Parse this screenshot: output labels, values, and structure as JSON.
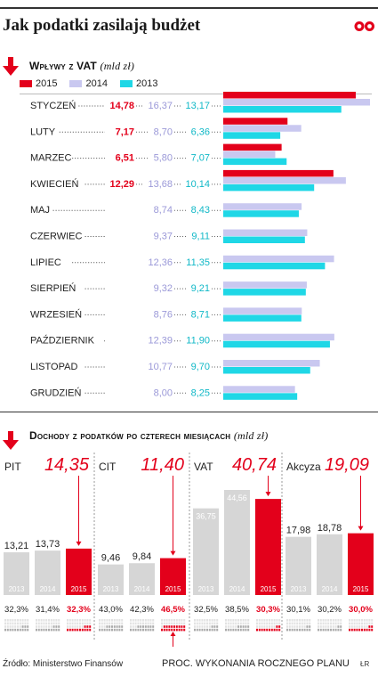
{
  "title": "Jak podatki zasilają budżet",
  "brand": "ćp",
  "colors": {
    "y2015": "#e3001b",
    "y2014": "#c9c8f0",
    "y2013": "#1fd7e6",
    "grey": "#d6d6d6",
    "plan_label_2015": "#e3001b",
    "label_2014": "#9b99d8",
    "label_2013": "#10b8c7"
  },
  "vat_section": {
    "title": "Wpływy z VAT",
    "unit": "(mld zł)",
    "legend": [
      "2015",
      "2014",
      "2013"
    ]
  },
  "chart_data": [
    {
      "type": "bar",
      "orientation": "horizontal",
      "title": "Wpływy z VAT",
      "unit": "mld zł",
      "categories": [
        "STYCZEŃ",
        "LUTY",
        "MARZEC",
        "KWIECIEŃ",
        "MAJ",
        "CZERWIEC",
        "LIPIEC",
        "SIERPIEŃ",
        "WRZESIEŃ",
        "PAŹDZIERNIK",
        "LISTOPAD",
        "GRUDZIEŃ"
      ],
      "series": [
        {
          "name": "2015",
          "values": [
            14.78,
            7.17,
            6.51,
            12.29,
            null,
            null,
            null,
            null,
            null,
            null,
            null,
            null
          ],
          "labels": [
            "14,78",
            "7,17",
            "6,51",
            "12,29",
            "",
            "",
            "",
            "",
            "",
            "",
            "",
            ""
          ]
        },
        {
          "name": "2014",
          "values": [
            16.37,
            8.7,
            5.8,
            13.68,
            8.74,
            9.37,
            12.36,
            9.32,
            8.76,
            12.39,
            10.77,
            8.0
          ],
          "labels": [
            "16,37",
            "8,70",
            "5,80",
            "13,68",
            "8,74",
            "9,37",
            "12,36",
            "9,32",
            "8,76",
            "12,39",
            "10,77",
            "8,00"
          ]
        },
        {
          "name": "2013",
          "values": [
            13.17,
            6.36,
            7.07,
            10.14,
            8.43,
            9.11,
            11.35,
            9.21,
            8.71,
            11.9,
            9.7,
            8.25
          ],
          "labels": [
            "13,17",
            "6,36",
            "7,07",
            "10,14",
            "8,43",
            "9,11",
            "11,35",
            "9,21",
            "8,71",
            "11,90",
            "9,70",
            "8,25"
          ]
        }
      ],
      "legend": "top-left",
      "grid": false
    },
    {
      "type": "bar",
      "title": "Dochody z podatków po czterech miesiącach",
      "unit": "mld zł",
      "groups": [
        {
          "name": "PIT",
          "annual_plan": 14.35,
          "annual_plan_label": "14,35",
          "bars": [
            {
              "year": "2013",
              "value": 13.21,
              "label": "13,21"
            },
            {
              "year": "2014",
              "value": 13.73,
              "label": "13,73"
            },
            {
              "year": "2015",
              "value": 14.35,
              "label": ""
            }
          ],
          "plan_execution": [
            {
              "year": "2013",
              "pct": 32.3,
              "label": "32,3%"
            },
            {
              "year": "2014",
              "pct": 31.4,
              "label": "31,4%"
            },
            {
              "year": "2015",
              "pct": 32.3,
              "label": "32,3%"
            }
          ]
        },
        {
          "name": "CIT",
          "annual_plan": 11.4,
          "annual_plan_label": "11,40",
          "bars": [
            {
              "year": "2013",
              "value": 9.46,
              "label": "9,46"
            },
            {
              "year": "2014",
              "value": 9.84,
              "label": "9,84"
            },
            {
              "year": "2015",
              "value": 11.4,
              "label": ""
            }
          ],
          "plan_execution": [
            {
              "year": "2013",
              "pct": 43.0,
              "label": "43,0%"
            },
            {
              "year": "2014",
              "pct": 42.3,
              "label": "42,3%"
            },
            {
              "year": "2015",
              "pct": 46.5,
              "label": "46,5%"
            }
          ]
        },
        {
          "name": "VAT",
          "annual_plan": 40.74,
          "annual_plan_label": "40,74",
          "bars": [
            {
              "year": "2013",
              "value": 36.75,
              "label": "36,75"
            },
            {
              "year": "2014",
              "value": 44.56,
              "label": "44,56"
            },
            {
              "year": "2015",
              "value": 40.74,
              "label": ""
            }
          ],
          "plan_execution": [
            {
              "year": "2013",
              "pct": 32.5,
              "label": "32,5%"
            },
            {
              "year": "2014",
              "pct": 38.5,
              "label": "38,5%"
            },
            {
              "year": "2015",
              "pct": 30.3,
              "label": "30,3%"
            }
          ]
        },
        {
          "name": "Akcyza",
          "annual_plan": 19.09,
          "annual_plan_label": "19,09",
          "bars": [
            {
              "year": "2013",
              "value": 17.98,
              "label": "17,98"
            },
            {
              "year": "2014",
              "value": 18.78,
              "label": "18,78"
            },
            {
              "year": "2015",
              "value": 19.09,
              "label": ""
            }
          ],
          "plan_execution": [
            {
              "year": "2013",
              "pct": 30.1,
              "label": "30,1%"
            },
            {
              "year": "2014",
              "pct": 30.2,
              "label": "30,2%"
            },
            {
              "year": "2015",
              "pct": 30.0,
              "label": "30,0%"
            }
          ]
        }
      ],
      "legend": "none"
    }
  ],
  "income_section": {
    "title": "Dochody z podatków po czterech miesiącach",
    "unit": "(mld zł)"
  },
  "source": "Źródło: Ministerstwo Finansów",
  "plan_caption": "PROC. WYKONANIA ROCZNEGO PLANU",
  "credit": "ŁR"
}
